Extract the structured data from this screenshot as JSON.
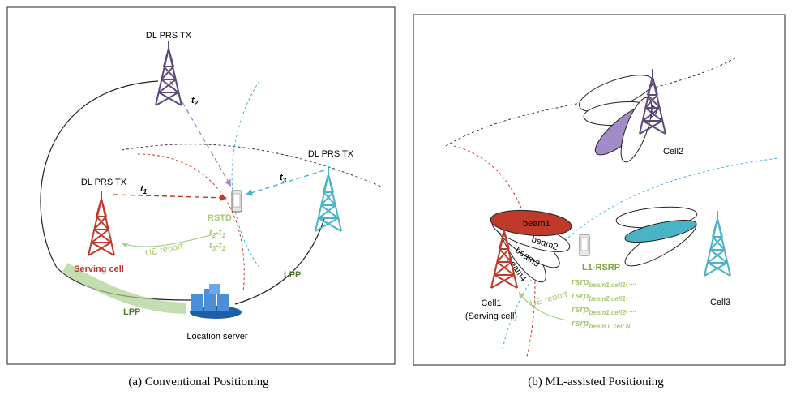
{
  "panel_a": {
    "caption": "(a) Conventional Positioning",
    "towers": [
      {
        "label": "DL PRS TX"
      },
      {
        "label": "DL PRS TX"
      },
      {
        "label": "DL PRS TX"
      }
    ],
    "serving_cell": "Serving cell",
    "timings": [
      {
        "base": "t",
        "sub": "1"
      },
      {
        "base": "t",
        "sub": "2"
      },
      {
        "base": "t",
        "sub": "3"
      }
    ],
    "rstd": {
      "title": "RSTD",
      "rows": [
        {
          "a": "t",
          "a_sub": "2",
          "op": "-",
          "b": "t",
          "b_sub": "1"
        },
        {
          "a": "t",
          "a_sub": "3",
          "op": "-",
          "b": "t",
          "b_sub": "1"
        }
      ]
    },
    "ue_report": "UE report",
    "lpp": [
      "LPP",
      "LPP"
    ],
    "location_server": "Location server"
  },
  "panel_b": {
    "caption": "(b) ML-assisted Positioning",
    "cells": [
      "Cell2",
      "Cell3"
    ],
    "serving": {
      "name": "Cell1",
      "note": "(Serving cell)"
    },
    "beams": [
      "beam1",
      "beam2",
      "beam3",
      "beam4"
    ],
    "report_title": "L1-RSRP",
    "rsrp": [
      {
        "base": "rsrp",
        "sub": "beam1,cell1",
        "tail": ", ...."
      },
      {
        "base": "rsrp",
        "sub": "beam2,cell1",
        "tail": ", ...."
      },
      {
        "base": "rsrp",
        "sub": "beam1,cell2",
        "tail": ", ...."
      },
      {
        "base": "rsrp",
        "sub": "beam i, cell N"
      }
    ],
    "ue_report": "UE report"
  }
}
